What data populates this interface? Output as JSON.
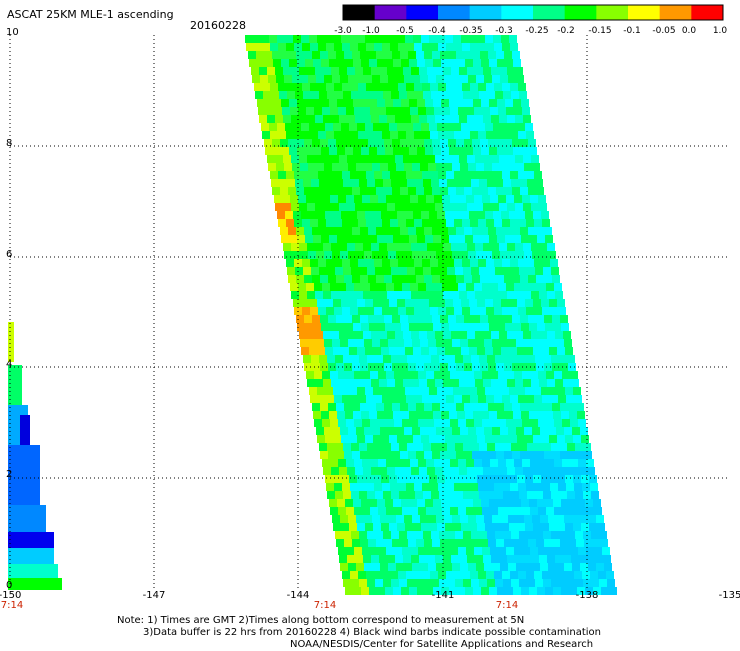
{
  "header": {
    "title": "ASCAT 25KM MLE-1 ascending",
    "date": "20160228"
  },
  "colorbar": {
    "labels": [
      "-3.0",
      "-1.0",
      "-0.5",
      "-0.4",
      "-0.35",
      "-0.3",
      "-0.25",
      "-0.2",
      "-0.15",
      "-0.1",
      "-0.05",
      "0.0",
      "1.0"
    ],
    "colors": [
      "#000000",
      "#6600cc",
      "#0000ff",
      "#0088ff",
      "#00ccff",
      "#00ffff",
      "#00ff88",
      "#00ff00",
      "#88ff00",
      "#ffff00",
      "#ff9900",
      "#ff0000"
    ]
  },
  "axes": {
    "x_ticks": [
      "-150",
      "-147",
      "-144",
      "-141",
      "-138",
      "-135"
    ],
    "y_ticks": [
      "0",
      "2",
      "4",
      "6",
      "8",
      "10"
    ],
    "time_labels": [
      "7:14",
      "7:14",
      "7:14"
    ]
  },
  "notes": {
    "line1": "Note: 1) Times are GMT 2)Times along bottom correspond to measurement at 5N",
    "line2": "3)Data buffer is 22 hrs from 20160228 4) Black wind barbs indicate possible contamination",
    "line3": "NOAA/NESDIS/Center for Satellite Applications and Research"
  }
}
